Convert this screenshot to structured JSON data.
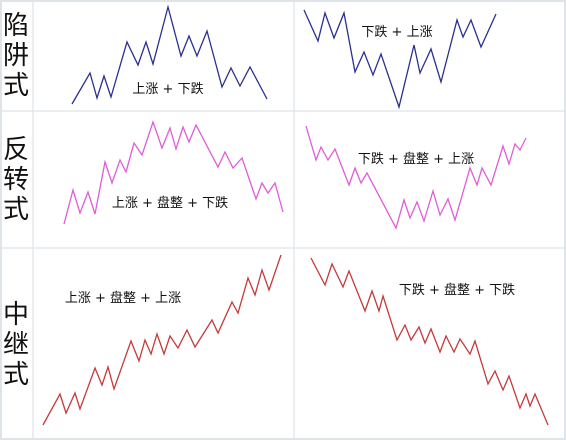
{
  "colors": {
    "trap": "#2b2f8f",
    "reversal": "#e05cd8",
    "continuation": "#c43a3a"
  },
  "rows": [
    {
      "label_chars": [
        "陷",
        "阱",
        "式"
      ],
      "color_key": "trap",
      "panels": [
        {
          "caption": "上涨 + 下跌",
          "points": [
            [
              72,
              104
            ],
            [
              90,
              73
            ],
            [
              97,
              98
            ],
            [
              104,
              76
            ],
            [
              111,
              97
            ],
            [
              127,
              42
            ],
            [
              138,
              65
            ],
            [
              146,
              42
            ],
            [
              153,
              64
            ],
            [
              168,
              7
            ],
            [
              181,
              56
            ],
            [
              189,
              36
            ],
            [
              197,
              56
            ],
            [
              207,
              31
            ],
            [
              222,
              87
            ],
            [
              231,
              68
            ],
            [
              240,
              86
            ],
            [
              250,
              67
            ],
            [
              267,
              99
            ]
          ]
        },
        {
          "caption": "下跌 + 上涨",
          "points": [
            [
              304,
              10
            ],
            [
              318,
              41
            ],
            [
              325,
              13
            ],
            [
              334,
              38
            ],
            [
              344,
              13
            ],
            [
              355,
              72
            ],
            [
              364,
              52
            ],
            [
              373,
              75
            ],
            [
              381,
              54
            ],
            [
              399,
              107
            ],
            [
              414,
              45
            ],
            [
              420,
              73
            ],
            [
              431,
              49
            ],
            [
              441,
              82
            ],
            [
              457,
              20
            ],
            [
              463,
              37
            ],
            [
              471,
              20
            ],
            [
              481,
              47
            ],
            [
              496,
              14
            ]
          ]
        }
      ]
    },
    {
      "label_chars": [
        "反",
        "转",
        "式"
      ],
      "color_key": "reversal",
      "panels": [
        {
          "caption": "上涨 + 盘整 + 下跌",
          "points": [
            [
              64,
              224
            ],
            [
              73,
              190
            ],
            [
              80,
              213
            ],
            [
              88,
              192
            ],
            [
              95,
              214
            ],
            [
              105,
              162
            ],
            [
              112,
              183
            ],
            [
              120,
              160
            ],
            [
              126,
              172
            ],
            [
              134,
              143
            ],
            [
              142,
              155
            ],
            [
              153,
              122
            ],
            [
              162,
              148
            ],
            [
              170,
              128
            ],
            [
              176,
              149
            ],
            [
              183,
              127
            ],
            [
              189,
              142
            ],
            [
              196,
              125
            ],
            [
              218,
              167
            ],
            [
              225,
              152
            ],
            [
              233,
              168
            ],
            [
              242,
              158
            ],
            [
              256,
              199
            ],
            [
              262,
              183
            ],
            [
              268,
              193
            ],
            [
              275,
              183
            ],
            [
              283,
              212
            ]
          ]
        },
        {
          "caption": "下跌 + 盘整 + 上涨",
          "points": [
            [
              306,
              126
            ],
            [
              316,
              160
            ],
            [
              321,
              147
            ],
            [
              328,
              160
            ],
            [
              335,
              149
            ],
            [
              349,
              185
            ],
            [
              355,
              168
            ],
            [
              361,
              183
            ],
            [
              367,
              173
            ],
            [
              396,
              228
            ],
            [
              404,
              200
            ],
            [
              410,
              218
            ],
            [
              417,
              202
            ],
            [
              424,
              221
            ],
            [
              433,
              191
            ],
            [
              440,
              215
            ],
            [
              448,
              199
            ],
            [
              455,
              220
            ],
            [
              470,
              168
            ],
            [
              477,
              185
            ],
            [
              482,
              168
            ],
            [
              491,
              185
            ],
            [
              503,
              146
            ],
            [
              509,
              164
            ],
            [
              515,
              144
            ],
            [
              520,
              150
            ],
            [
              526,
              138
            ]
          ]
        }
      ]
    },
    {
      "label_chars": [
        "中",
        "继",
        "式"
      ],
      "color_key": "continuation",
      "panels": [
        {
          "caption": "上涨 + 盘整 + 上涨",
          "points": [
            [
              43,
              425
            ],
            [
              60,
              394
            ],
            [
              66,
              413
            ],
            [
              75,
              393
            ],
            [
              80,
              409
            ],
            [
              95,
              368
            ],
            [
              102,
              385
            ],
            [
              108,
              367
            ],
            [
              114,
              389
            ],
            [
              131,
              341
            ],
            [
              139,
              361
            ],
            [
              145,
              340
            ],
            [
              151,
              354
            ],
            [
              157,
              334
            ],
            [
              164,
              354
            ],
            [
              170,
              336
            ],
            [
              178,
              348
            ],
            [
              187,
              330
            ],
            [
              195,
              347
            ],
            [
              212,
              320
            ],
            [
              218,
              333
            ],
            [
              232,
              302
            ],
            [
              238,
              313
            ],
            [
              248,
              278
            ],
            [
              255,
              295
            ],
            [
              262,
              270
            ],
            [
              269,
              290
            ],
            [
              281,
              255
            ]
          ]
        },
        {
          "caption": "下跌 + 盘整 + 下跌",
          "points": [
            [
              311,
              258
            ],
            [
              325,
              285
            ],
            [
              332,
              264
            ],
            [
              343,
              287
            ],
            [
              349,
              271
            ],
            [
              365,
              311
            ],
            [
              372,
              291
            ],
            [
              379,
              311
            ],
            [
              383,
              296
            ],
            [
              397,
              340
            ],
            [
              405,
              325
            ],
            [
              411,
              340
            ],
            [
              419,
              327
            ],
            [
              425,
              343
            ],
            [
              431,
              329
            ],
            [
              440,
              352
            ],
            [
              446,
              336
            ],
            [
              454,
              352
            ],
            [
              460,
              339
            ],
            [
              470,
              354
            ],
            [
              475,
              341
            ],
            [
              488,
              384
            ],
            [
              495,
              371
            ],
            [
              503,
              390
            ],
            [
              509,
              376
            ],
            [
              520,
              408
            ],
            [
              526,
              394
            ],
            [
              530,
              406
            ],
            [
              535,
              394
            ],
            [
              548,
              425
            ]
          ]
        }
      ]
    }
  ]
}
